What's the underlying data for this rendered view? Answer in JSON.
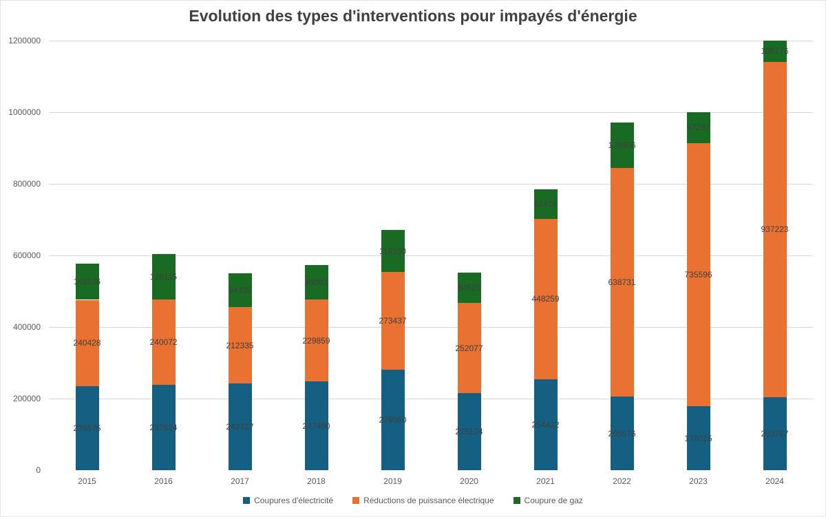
{
  "title": "Evolution des types d'interventions pour impayés d'énergie",
  "chart_data": {
    "type": "bar",
    "stacked": true,
    "title": "Evolution des types d'interventions pour impayés d'énergie",
    "categories": [
      "2015",
      "2016",
      "2017",
      "2018",
      "2019",
      "2020",
      "2021",
      "2022",
      "2023",
      "2024"
    ],
    "series": [
      {
        "name": "Coupures d'électricité",
        "color": "#156082",
        "values": [
          235575,
          237624,
          242727,
          247490,
          279950,
          215124,
          254422,
          205576,
          178015,
          203767
        ]
      },
      {
        "name": "Réductions de puissance électrique",
        "color": "#E97132",
        "values": [
          240428,
          240072,
          212335,
          229859,
          273437,
          252077,
          448259,
          638731,
          735596,
          937223
        ]
      },
      {
        "name": "Coupure de gaz",
        "color": "#196B24",
        "values": [
          101136,
          126115,
          94325,
          95091,
          118160,
          84520,
          82415,
          126606,
          87297,
          105176
        ]
      }
    ],
    "xlabel": "",
    "ylabel": "",
    "ylim": [
      0,
      1200000
    ],
    "yticks": [
      {
        "value": 0,
        "label": "0"
      },
      {
        "value": 200000,
        "label": "200000"
      },
      {
        "value": 400000,
        "label": "400000"
      },
      {
        "value": 600000,
        "label": "600000"
      },
      {
        "value": 800000,
        "label": "800000"
      },
      {
        "value": 1000000,
        "label": "1000000"
      },
      {
        "value": 1200000,
        "label": "1200000"
      }
    ],
    "grid": true,
    "data_labels": true,
    "legend_position": "bottom",
    "note": "2024 total (1246166) exceeds the axis maximum, bar is clipped at 1200000"
  },
  "colors": {
    "grid": "#d9d9d9",
    "axis_line": "#bfbfbf",
    "tick_text": "#595959",
    "data_label_text": "#3f3f3f",
    "title_text": "#404040",
    "background": "#ffffff"
  }
}
